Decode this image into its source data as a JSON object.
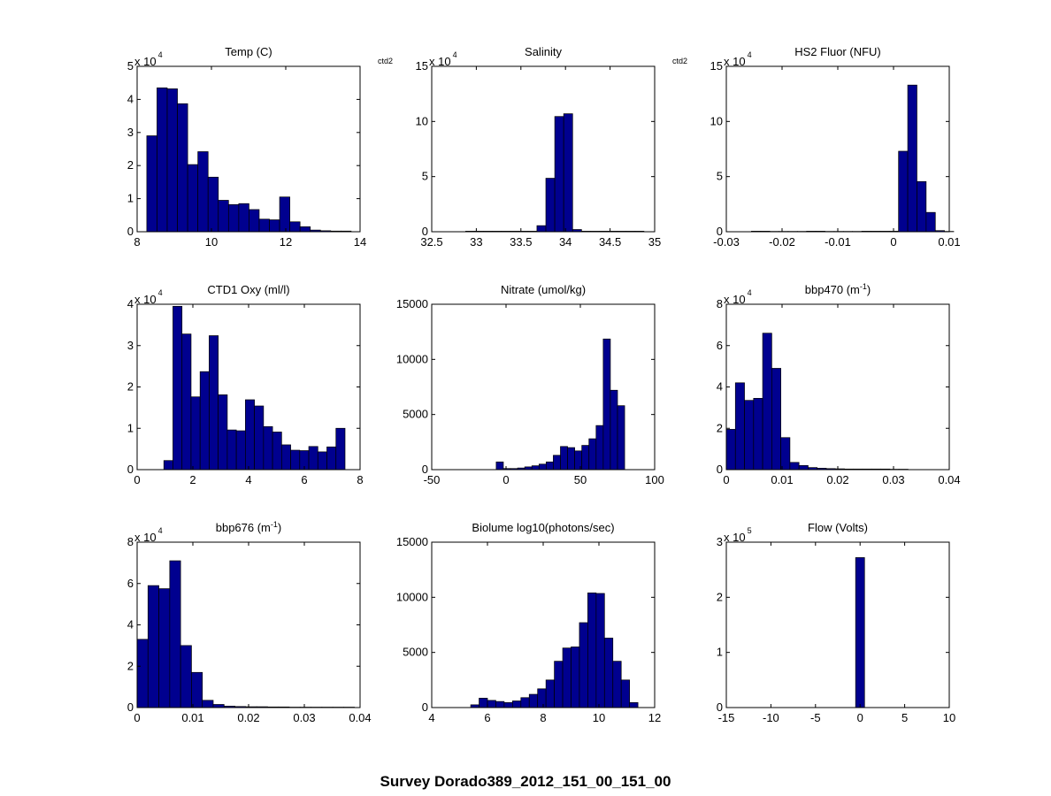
{
  "figure_title": "Survey Dorado389_2012_151_00_151_00",
  "colors": {
    "bar_fill": "#00008F",
    "bar_edge": "#000000",
    "axes": "#000000",
    "background": "#FFFFFF"
  },
  "chart_data": [
    {
      "type": "bar",
      "title": "Temp (C)",
      "corner_label": "ctd2",
      "exponent_label": "x 10",
      "exponent": "4",
      "xlim": [
        8,
        14
      ],
      "ylim": [
        0,
        5
      ],
      "xticks": [
        "8",
        "10",
        "12",
        "14"
      ],
      "yticks": [
        "0",
        "1",
        "2",
        "3",
        "4",
        "5"
      ],
      "bin_start": 8.26,
      "bin_width": 0.275,
      "values": [
        2.9,
        4.35,
        4.32,
        3.87,
        2.03,
        2.42,
        1.65,
        0.95,
        0.82,
        0.85,
        0.67,
        0.38,
        0.36,
        1.05,
        0.3,
        0.15,
        0.05,
        0.03,
        0.02,
        0.02
      ]
    },
    {
      "type": "bar",
      "title": "Salinity",
      "corner_label": "ctd2",
      "exponent_label": "x 10",
      "exponent": "4",
      "xlim": [
        32.5,
        35
      ],
      "ylim": [
        0,
        15
      ],
      "xticks": [
        "32.5",
        "33",
        "33.5",
        "34",
        "34.5",
        "35"
      ],
      "yticks": [
        "0",
        "5",
        "10",
        "15"
      ],
      "bin_start": 32.88,
      "bin_width": 0.1,
      "values": [
        0.05,
        0.05,
        0.05,
        0.05,
        0.05,
        0.05,
        0.05,
        0.05,
        0.55,
        4.85,
        10.45,
        10.7,
        0.2,
        0.05,
        0.05,
        0.05,
        0.05,
        0.05,
        0.05,
        0.05
      ]
    },
    {
      "type": "bar",
      "title": "HS2 Fluor (NFU)",
      "corner_label": "",
      "exponent_label": "x 10",
      "exponent": "4",
      "xlim": [
        -0.03,
        0.01
      ],
      "ylim": [
        0,
        15
      ],
      "xticks": [
        "-0.03",
        "-0.02",
        "-0.01",
        "0",
        "0.01"
      ],
      "yticks": [
        "0",
        "5",
        "10",
        "15"
      ],
      "bin_start": -0.0255,
      "bin_width": 0.00165,
      "values": [
        0.05,
        0.05,
        0.03,
        0.03,
        0.03,
        0.03,
        0.05,
        0.05,
        0.03,
        0.03,
        0.03,
        0.03,
        0.05,
        0.05,
        0.05,
        0.05,
        7.3,
        13.3,
        4.55,
        1.75,
        0.1,
        0.03
      ]
    },
    {
      "type": "bar",
      "title": "CTD1 Oxy (ml/l)",
      "corner_label": "",
      "exponent_label": "x 10",
      "exponent": "4",
      "xlim": [
        0,
        8
      ],
      "ylim": [
        0,
        4
      ],
      "xticks": [
        "0",
        "2",
        "4",
        "6",
        "8"
      ],
      "yticks": [
        "0",
        "1",
        "2",
        "3",
        "4"
      ],
      "bin_start": 0.96,
      "bin_width": 0.325,
      "values": [
        0.22,
        3.95,
        3.28,
        1.76,
        2.37,
        3.24,
        1.81,
        0.96,
        0.94,
        1.69,
        1.54,
        1.04,
        0.91,
        0.6,
        0.47,
        0.46,
        0.56,
        0.43,
        0.55,
        1.0
      ]
    },
    {
      "type": "bar",
      "title": "Nitrate (umol/kg)",
      "corner_label": "",
      "exponent_label": "",
      "exponent": "",
      "xlim": [
        -50,
        100
      ],
      "ylim": [
        0,
        15000
      ],
      "xticks": [
        "-50",
        "0",
        "50",
        "100"
      ],
      "yticks": [
        "0",
        "5000",
        "10000",
        "15000"
      ],
      "bin_start": -45,
      "bin_width": 4.8,
      "values": [
        0,
        0,
        0,
        0,
        0,
        0,
        0,
        0,
        700,
        100,
        100,
        150,
        250,
        350,
        500,
        700,
        1300,
        2100,
        2000,
        1700,
        2200,
        2800,
        4000,
        11850,
        7200,
        5800
      ]
    },
    {
      "type": "bar",
      "title": "bbp470 (m",
      "title_sup": "-1",
      "title_end": ")",
      "corner_label": "",
      "exponent_label": "x 10",
      "exponent": "4",
      "xlim": [
        0,
        0.04
      ],
      "ylim": [
        0,
        8
      ],
      "xticks": [
        "0",
        "0.01",
        "0.02",
        "0.03",
        "0.04"
      ],
      "yticks": [
        "0",
        "2",
        "4",
        "6",
        "8"
      ],
      "bin_start": 0,
      "bin_width": 0.00163,
      "values": [
        1.95,
        4.2,
        3.35,
        3.45,
        6.6,
        4.9,
        1.55,
        0.35,
        0.2,
        0.1,
        0.07,
        0.05,
        0.04,
        0.03,
        0.03,
        0.03,
        0.03,
        0.03,
        0.02,
        0.02
      ]
    },
    {
      "type": "bar",
      "title": "bbp676 (m",
      "title_sup": "-1",
      "title_end": ")",
      "corner_label": "",
      "exponent_label": "x 10",
      "exponent": "4",
      "xlim": [
        0,
        0.04
      ],
      "ylim": [
        0,
        8
      ],
      "xticks": [
        "0",
        "0.01",
        "0.02",
        "0.03",
        "0.04"
      ],
      "yticks": [
        "0",
        "2",
        "4",
        "6",
        "8"
      ],
      "bin_start": 0,
      "bin_width": 0.00195,
      "values": [
        3.3,
        5.9,
        5.75,
        7.1,
        3.0,
        1.7,
        0.35,
        0.15,
        0.07,
        0.05,
        0.04,
        0.04,
        0.03,
        0.03,
        0.02,
        0.02,
        0.02,
        0.02,
        0.02,
        0.02
      ]
    },
    {
      "type": "bar",
      "title": "Biolume log10(photons/sec)",
      "corner_label": "",
      "exponent_label": "",
      "exponent": "",
      "xlim": [
        4,
        12
      ],
      "ylim": [
        0,
        15000
      ],
      "xticks": [
        "4",
        "6",
        "8",
        "10",
        "12"
      ],
      "yticks": [
        "0",
        "5000",
        "10000",
        "15000"
      ],
      "bin_start": 5.4,
      "bin_width": 0.3,
      "values": [
        250,
        850,
        650,
        550,
        450,
        600,
        900,
        1200,
        1700,
        2500,
        4200,
        5400,
        5500,
        7700,
        10400,
        10350,
        6300,
        4200,
        2500,
        450
      ]
    },
    {
      "type": "bar",
      "title": "Flow (Volts)",
      "corner_label": "",
      "exponent_label": "x 10",
      "exponent": "5",
      "xlim": [
        -15,
        10
      ],
      "ylim": [
        0,
        3
      ],
      "xticks": [
        "-15",
        "-10",
        "-5",
        "0",
        "5",
        "10"
      ],
      "yticks": [
        "0",
        "1",
        "2",
        "3"
      ],
      "bin_start": -0.5,
      "bin_width": 1.0,
      "values": [
        2.72
      ]
    }
  ]
}
